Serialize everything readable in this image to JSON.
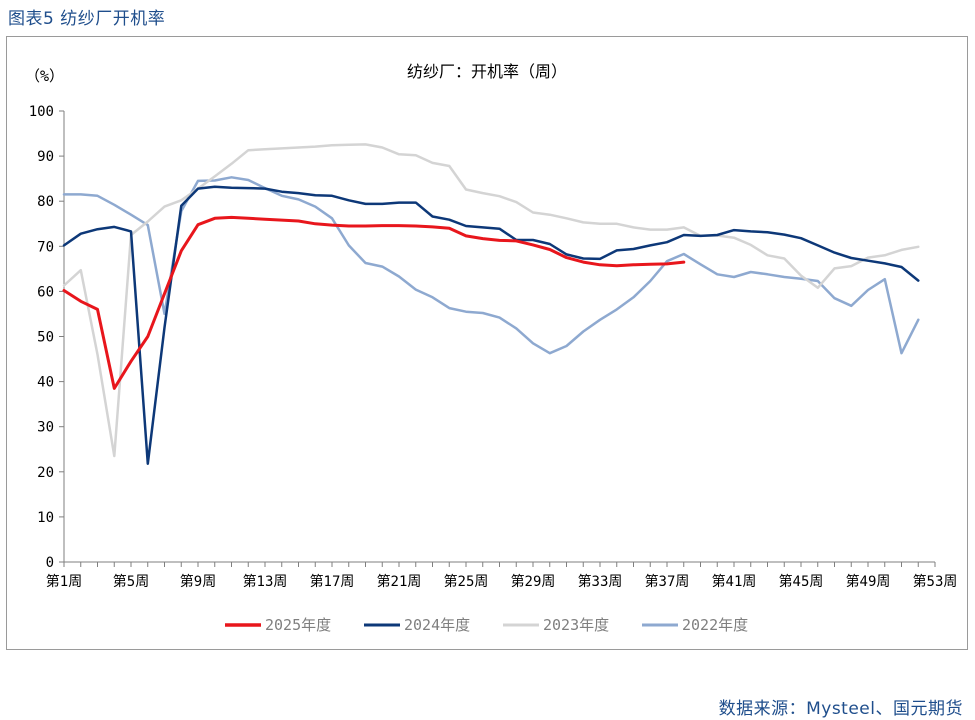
{
  "figure_title": "图表5 纺纱厂开机率",
  "source": "数据来源：Mysteel、国元期货",
  "chart_data": {
    "type": "line",
    "title": "纺纱厂：开机率（周）",
    "ylabel": "（%）",
    "xlabel": "",
    "ylim": [
      0,
      100
    ],
    "yticks": [
      0,
      10,
      20,
      30,
      40,
      50,
      60,
      70,
      80,
      90,
      100
    ],
    "x": [
      1,
      2,
      3,
      4,
      5,
      6,
      7,
      8,
      9,
      10,
      11,
      12,
      13,
      14,
      15,
      16,
      17,
      18,
      19,
      20,
      21,
      22,
      23,
      24,
      25,
      26,
      27,
      28,
      29,
      30,
      31,
      32,
      33,
      34,
      35,
      36,
      37,
      38,
      39,
      40,
      41,
      42,
      43,
      44,
      45,
      46,
      47,
      48,
      49,
      50,
      51,
      52,
      53
    ],
    "xtick_labels": [
      "第1周",
      "第5周",
      "第9周",
      "第13周",
      "第17周",
      "第21周",
      "第25周",
      "第29周",
      "第33周",
      "第37周",
      "第41周",
      "第45周",
      "第49周",
      "第53周"
    ],
    "xtick_weeks": [
      1,
      5,
      9,
      13,
      17,
      21,
      25,
      29,
      33,
      37,
      41,
      45,
      49,
      53
    ],
    "grid": false,
    "legend_position": "bottom",
    "series": [
      {
        "name": "2025年度",
        "color": "#e8161c",
        "width": 3,
        "values": [
          60.2,
          57.8,
          56.0,
          38.5,
          44.5,
          50.0,
          59.5,
          69.0,
          74.8,
          76.2,
          76.4,
          76.2,
          76.0,
          75.8,
          75.6,
          75.0,
          74.7,
          74.5,
          74.5,
          74.6,
          74.6,
          74.5,
          74.3,
          74.0,
          72.3,
          71.7,
          71.3,
          71.2,
          70.3,
          69.3,
          67.5,
          66.5,
          65.9,
          65.7,
          65.9,
          66.0,
          66.1,
          66.5,
          null,
          null,
          null,
          null,
          null,
          null,
          null,
          null,
          null,
          null,
          null,
          null,
          null,
          null,
          null
        ]
      },
      {
        "name": "2024年度",
        "color": "#0d3878",
        "width": 2.5,
        "values": [
          70.2,
          72.8,
          73.8,
          74.3,
          73.3,
          21.8,
          52.0,
          79.0,
          82.8,
          83.2,
          83.0,
          82.9,
          82.8,
          82.1,
          81.8,
          81.3,
          81.2,
          80.2,
          79.4,
          79.4,
          79.7,
          79.7,
          76.6,
          75.9,
          74.5,
          74.2,
          73.9,
          71.4,
          71.4,
          70.5,
          68.2,
          67.3,
          67.2,
          69.1,
          69.4,
          70.2,
          70.9,
          72.5,
          72.3,
          72.5,
          73.6,
          73.3,
          73.1,
          72.6,
          71.8,
          70.2,
          68.6,
          67.4,
          66.8,
          66.2,
          65.4,
          62.4,
          null
        ]
      },
      {
        "name": "2023年度",
        "color": "#d4d4d4",
        "width": 2.5,
        "values": [
          61.3,
          64.7,
          46.0,
          23.5,
          72.5,
          75.5,
          78.8,
          80.2,
          82.8,
          85.5,
          88.3,
          91.3,
          91.5,
          91.7,
          91.9,
          92.1,
          92.4,
          92.5,
          92.6,
          91.9,
          90.4,
          90.2,
          88.5,
          87.8,
          82.6,
          81.8,
          81.1,
          79.8,
          77.5,
          77.0,
          76.2,
          75.3,
          75.0,
          75.0,
          74.2,
          73.7,
          73.7,
          74.2,
          72.3,
          72.4,
          71.9,
          70.3,
          68.0,
          67.3,
          63.5,
          60.8,
          65.1,
          65.6,
          67.5,
          68.0,
          69.2,
          69.9,
          null
        ]
      },
      {
        "name": "2022年度",
        "color": "#8ea9d0",
        "width": 2.5,
        "values": [
          81.5,
          81.5,
          81.2,
          79.2,
          77.0,
          74.7,
          55.0,
          77.8,
          84.5,
          84.6,
          85.3,
          84.7,
          82.9,
          81.2,
          80.4,
          78.8,
          76.2,
          70.2,
          66.3,
          65.5,
          63.3,
          60.4,
          58.7,
          56.3,
          55.5,
          55.2,
          54.2,
          51.8,
          48.5,
          46.3,
          47.9,
          51.1,
          53.7,
          56.0,
          58.7,
          62.3,
          66.7,
          68.3,
          66.0,
          63.8,
          63.2,
          64.3,
          63.8,
          63.2,
          62.8,
          62.3,
          58.5,
          56.8,
          60.3,
          62.7,
          46.3,
          53.7,
          null
        ]
      }
    ]
  }
}
